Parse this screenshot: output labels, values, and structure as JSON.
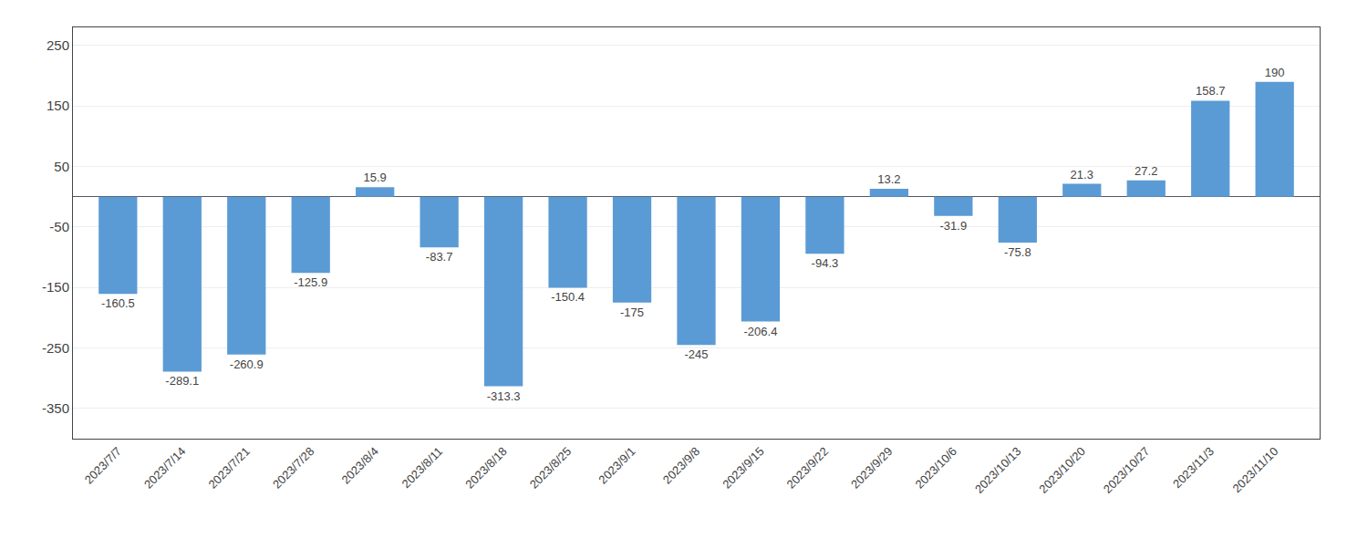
{
  "chart_data": {
    "type": "bar",
    "categories": [
      "2023/7/7",
      "2023/7/14",
      "2023/7/21",
      "2023/7/28",
      "2023/8/4",
      "2023/8/11",
      "2023/8/18",
      "2023/8/25",
      "2023/9/1",
      "2023/9/8",
      "2023/9/15",
      "2023/9/22",
      "2023/9/29",
      "2023/10/6",
      "2023/10/13",
      "2023/10/20",
      "2023/10/27",
      "2023/11/3",
      "2023/11/10"
    ],
    "values": [
      -160.5,
      -289.1,
      -260.9,
      -125.9,
      15.9,
      -83.7,
      -313.3,
      -150.4,
      -175,
      -245,
      -206.4,
      -94.3,
      13.2,
      -31.9,
      -75.8,
      21.3,
      27.2,
      158.7,
      190
    ],
    "color": "#5b9bd5",
    "ylim": [
      -400,
      280
    ],
    "yticks": [
      -350,
      -250,
      -150,
      -50,
      50,
      150,
      250
    ],
    "grid": true,
    "data_labels": true
  }
}
